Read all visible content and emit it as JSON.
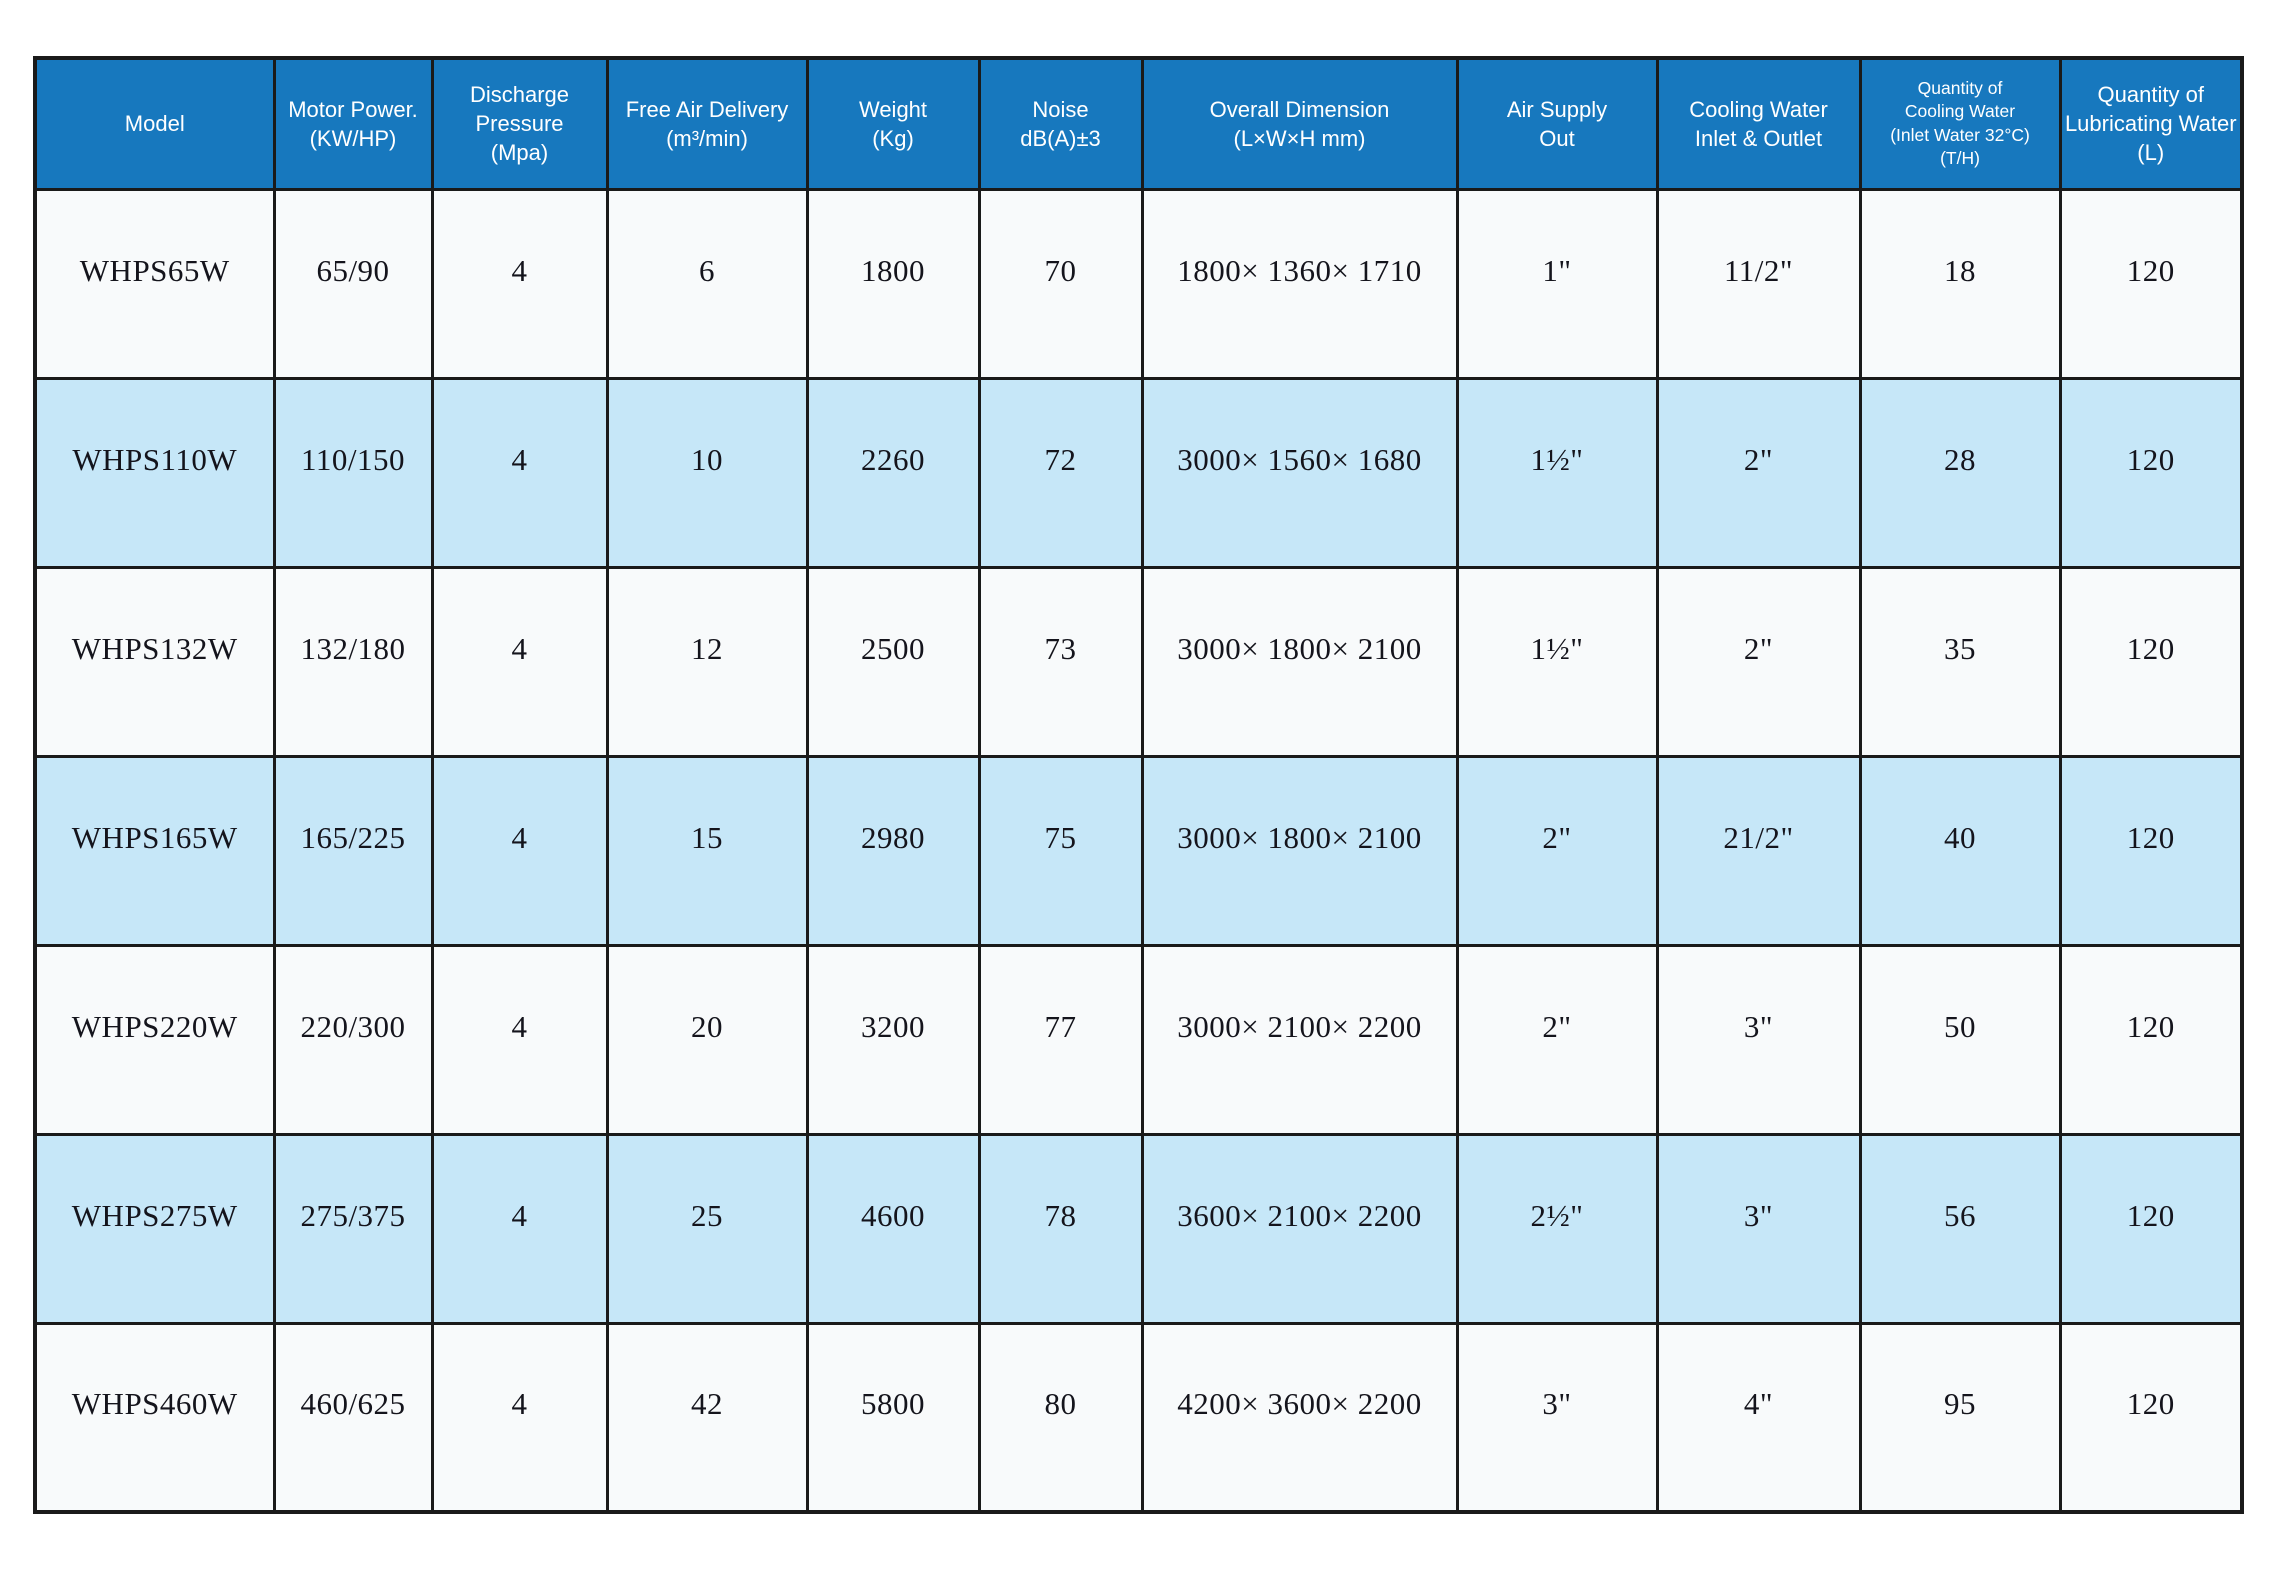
{
  "colors": {
    "header_bg": "#1778be",
    "header_text": "#ffffff",
    "row_bg": "#f8fafb",
    "row_alt_bg": "#c6e7f8",
    "border": "#1a1a1a",
    "body_text": "#14141c",
    "page_bg": "#ffffff"
  },
  "table": {
    "name": "air-compressor-specifications",
    "headers": [
      {
        "id": "model",
        "label": "Model"
      },
      {
        "id": "motor_power",
        "label": "Motor Power.\n(KW/HP)"
      },
      {
        "id": "discharge_pressure",
        "label": "Discharge\nPressure\n(Mpa)"
      },
      {
        "id": "free_air_delivery",
        "label": "Free Air Delivery\n(m³/min)"
      },
      {
        "id": "weight",
        "label": "Weight\n(Kg)"
      },
      {
        "id": "noise",
        "label": "Noise\ndB(A)±3"
      },
      {
        "id": "overall_dimension",
        "label": "Overall Dimension\n(L×W×H mm)"
      },
      {
        "id": "air_supply_out",
        "label": "Air Supply\nOut"
      },
      {
        "id": "cooling_water_inlet_outlet",
        "label": "Cooling Water\nInlet & Outlet"
      },
      {
        "id": "qty_cooling_water",
        "label": "Quantity of\nCooling Water\n(Inlet Water 32°C)\n(T/H)"
      },
      {
        "id": "qty_lubricating_water",
        "label": "Quantity of\nLubricating Water\n(L)"
      }
    ],
    "rows": [
      [
        "WHPS65W",
        "65/90",
        "4",
        "6",
        "1800",
        "70",
        "1800× 1360× 1710",
        "1\"",
        "11/2\"",
        "18",
        "120"
      ],
      [
        "WHPS110W",
        "110/150",
        "4",
        "10",
        "2260",
        "72",
        "3000× 1560× 1680",
        "1½\"",
        "2\"",
        "28",
        "120"
      ],
      [
        "WHPS132W",
        "132/180",
        "4",
        "12",
        "2500",
        "73",
        "3000× 1800× 2100",
        "1½\"",
        "2\"",
        "35",
        "120"
      ],
      [
        "WHPS165W",
        "165/225",
        "4",
        "15",
        "2980",
        "75",
        "3000× 1800× 2100",
        "2\"",
        "21/2\"",
        "40",
        "120"
      ],
      [
        "WHPS220W",
        "220/300",
        "4",
        "20",
        "3200",
        "77",
        "3000× 2100× 2200",
        "2\"",
        "3\"",
        "50",
        "120"
      ],
      [
        "WHPS275W",
        "275/375",
        "4",
        "25",
        "4600",
        "78",
        "3600× 2100× 2200",
        "2½\"",
        "3\"",
        "56",
        "120"
      ],
      [
        "WHPS460W",
        "460/625",
        "4",
        "42",
        "5800",
        "80",
        "4200× 3600× 2200",
        "3\"",
        "4\"",
        "95",
        "120"
      ]
    ]
  }
}
